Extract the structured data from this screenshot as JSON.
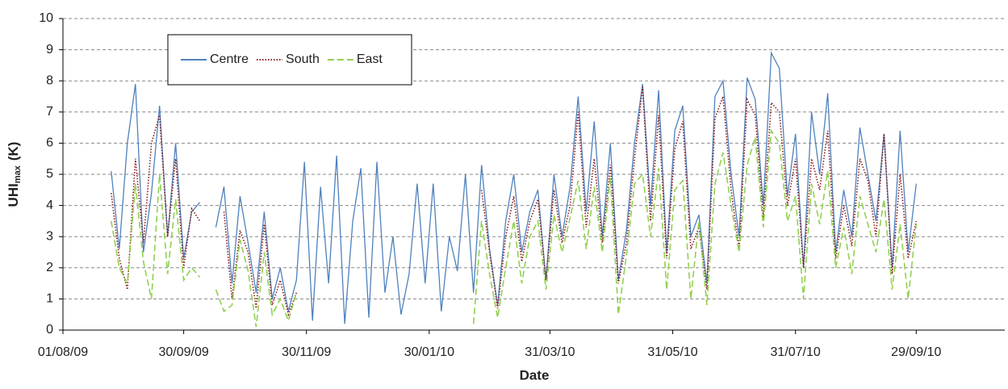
{
  "chart_data": {
    "type": "line",
    "x_label": "Date",
    "y_label": [
      "UHI",
      "max",
      "(K)"
    ],
    "x": [
      "2009-08-25",
      "2009-08-29",
      "2009-09-02",
      "2009-09-06",
      "2009-09-10",
      "2009-09-14",
      "2009-09-18",
      "2009-09-22",
      "2009-09-26",
      "2009-09-30",
      "2009-10-04",
      "2009-10-08",
      "2009-10-12",
      "2009-10-16",
      "2009-10-20",
      "2009-10-24",
      "2009-10-28",
      "2009-11-01",
      "2009-11-05",
      "2009-11-09",
      "2009-11-13",
      "2009-11-17",
      "2009-11-21",
      "2009-11-25",
      "2009-11-29",
      "2009-12-03",
      "2009-12-07",
      "2009-12-11",
      "2009-12-15",
      "2009-12-19",
      "2009-12-23",
      "2009-12-27",
      "2009-12-31",
      "2010-01-04",
      "2010-01-08",
      "2010-01-12",
      "2010-01-16",
      "2010-01-20",
      "2010-01-24",
      "2010-01-28",
      "2010-02-01",
      "2010-02-05",
      "2010-02-09",
      "2010-02-13",
      "2010-02-17",
      "2010-02-21",
      "2010-02-25",
      "2010-03-01",
      "2010-03-05",
      "2010-03-09",
      "2010-03-13",
      "2010-03-17",
      "2010-03-21",
      "2010-03-25",
      "2010-03-29",
      "2010-04-02",
      "2010-04-06",
      "2010-04-10",
      "2010-04-14",
      "2010-04-18",
      "2010-04-22",
      "2010-04-26",
      "2010-04-30",
      "2010-05-04",
      "2010-05-08",
      "2010-05-12",
      "2010-05-16",
      "2010-05-20",
      "2010-05-24",
      "2010-05-28",
      "2010-06-01",
      "2010-06-05",
      "2010-06-09",
      "2010-06-13",
      "2010-06-17",
      "2010-06-21",
      "2010-06-25",
      "2010-06-29",
      "2010-07-03",
      "2010-07-07",
      "2010-07-11",
      "2010-07-15",
      "2010-07-19",
      "2010-07-23",
      "2010-07-27",
      "2010-07-31",
      "2010-08-04",
      "2010-08-08",
      "2010-08-12",
      "2010-08-16",
      "2010-08-20",
      "2010-08-24",
      "2010-08-28",
      "2010-09-01",
      "2010-09-05",
      "2010-09-09",
      "2010-09-13",
      "2010-09-17",
      "2010-09-21",
      "2010-09-25",
      "2010-09-29"
    ],
    "series": [
      {
        "name": "Centre",
        "color": "#4f81bd",
        "style": "solid",
        "values": [
          5.1,
          2.6,
          6.0,
          7.9,
          2.5,
          4.4,
          7.2,
          3.0,
          6.0,
          2.3,
          3.8,
          4.1,
          null,
          3.3,
          4.6,
          1.5,
          4.3,
          2.8,
          1.2,
          3.8,
          1.0,
          2.0,
          0.6,
          1.6,
          5.4,
          0.3,
          4.6,
          1.5,
          5.6,
          0.2,
          3.5,
          5.2,
          0.4,
          5.4,
          1.2,
          3.0,
          0.5,
          1.8,
          4.7,
          1.5,
          4.7,
          0.6,
          3.0,
          1.9,
          5.0,
          1.2,
          5.3,
          2.6,
          0.8,
          3.5,
          5.0,
          2.5,
          3.8,
          4.5,
          1.6,
          5.0,
          3.0,
          4.6,
          7.5,
          3.8,
          6.7,
          3.0,
          6.0,
          1.6,
          3.2,
          6.0,
          7.9,
          4.0,
          7.7,
          2.5,
          6.4,
          7.2,
          3.0,
          3.7,
          1.5,
          7.5,
          8.0,
          5.0,
          3.0,
          8.1,
          7.4,
          4.0,
          8.9,
          8.4,
          4.3,
          6.3,
          2.0,
          7.0,
          5.0,
          7.6,
          2.5,
          4.5,
          3.0,
          6.5,
          5.0,
          3.5,
          6.3,
          2.0,
          6.4,
          2.5,
          4.7
        ]
      },
      {
        "name": "South",
        "color": "#8b1a1a",
        "style": "dotted",
        "values": [
          4.4,
          2.3,
          1.3,
          5.5,
          2.8,
          6.0,
          6.9,
          3.0,
          5.5,
          2.0,
          3.9,
          3.5,
          null,
          null,
          3.8,
          1.0,
          3.2,
          2.5,
          0.7,
          3.4,
          0.8,
          1.6,
          0.5,
          1.2,
          null,
          null,
          null,
          null,
          null,
          null,
          null,
          null,
          null,
          null,
          null,
          null,
          null,
          null,
          null,
          null,
          null,
          null,
          null,
          null,
          null,
          null,
          4.5,
          2.5,
          0.7,
          3.0,
          4.3,
          2.2,
          3.5,
          4.2,
          1.6,
          4.5,
          2.8,
          4.0,
          7.0,
          3.3,
          5.5,
          2.8,
          5.3,
          1.5,
          2.8,
          5.5,
          7.8,
          3.5,
          6.9,
          2.3,
          5.8,
          6.7,
          2.6,
          3.3,
          1.3,
          6.8,
          7.5,
          4.5,
          2.6,
          7.4,
          6.9,
          3.6,
          7.3,
          7.0,
          4.0,
          5.5,
          2.0,
          5.5,
          4.5,
          6.4,
          2.3,
          4.0,
          2.7,
          5.5,
          4.8,
          3.0,
          6.3,
          1.8,
          5.0,
          2.3,
          3.5
        ]
      },
      {
        "name": "East",
        "color": "#92d050",
        "style": "dashed",
        "values": [
          3.5,
          2.0,
          1.5,
          4.7,
          2.2,
          1.0,
          5.0,
          1.8,
          4.2,
          1.6,
          2.0,
          1.7,
          null,
          1.3,
          0.6,
          0.8,
          2.9,
          1.9,
          0.1,
          2.5,
          0.5,
          1.0,
          0.3,
          1.2,
          null,
          null,
          null,
          null,
          null,
          null,
          null,
          null,
          null,
          null,
          null,
          null,
          null,
          null,
          null,
          null,
          null,
          null,
          null,
          null,
          null,
          0.2,
          3.5,
          1.8,
          0.4,
          2.0,
          3.5,
          1.5,
          3.0,
          3.5,
          1.3,
          3.7,
          2.5,
          3.6,
          4.8,
          2.6,
          4.6,
          2.5,
          4.9,
          0.5,
          2.4,
          4.7,
          5.0,
          3.0,
          5.2,
          1.3,
          4.5,
          4.8,
          1.0,
          3.5,
          0.8,
          4.7,
          5.7,
          4.0,
          2.5,
          5.3,
          6.2,
          3.3,
          6.4,
          6.0,
          3.5,
          4.3,
          1.0,
          4.7,
          3.4,
          5.1,
          2.0,
          3.3,
          1.8,
          4.3,
          3.4,
          2.5,
          4.2,
          1.3,
          3.4,
          1.0,
          3.4
        ]
      }
    ],
    "xlim": [
      "2009-08-01",
      "2010-11-12"
    ],
    "xticks": [
      {
        "value": "2009-08-01",
        "label": "01/08/09"
      },
      {
        "value": "2009-09-30",
        "label": "30/09/09"
      },
      {
        "value": "2009-11-30",
        "label": "30/11/09"
      },
      {
        "value": "2010-01-30",
        "label": "30/01/10"
      },
      {
        "value": "2010-03-31",
        "label": "31/03/10"
      },
      {
        "value": "2010-05-31",
        "label": "31/05/10"
      },
      {
        "value": "2010-07-31",
        "label": "31/07/10"
      },
      {
        "value": "2010-09-29",
        "label": "29/09/10"
      }
    ],
    "ylim": [
      0,
      10
    ],
    "yticks": [
      0,
      1,
      2,
      3,
      4,
      5,
      6,
      7,
      8,
      9,
      10
    ],
    "grid": true,
    "legend": "upper-left"
  }
}
